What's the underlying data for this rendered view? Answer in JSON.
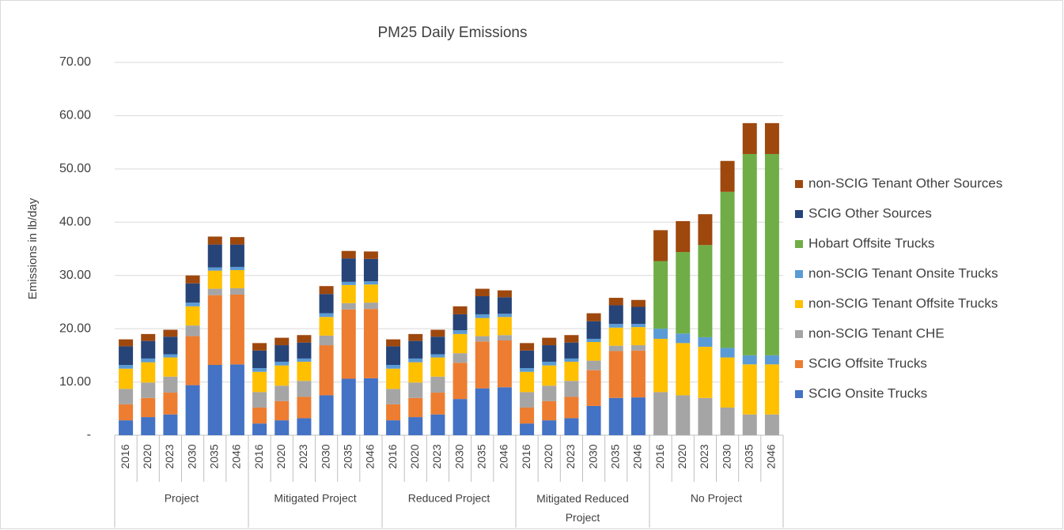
{
  "chart_data": {
    "type": "stacked_bar",
    "title": "PM25 Daily Emissions",
    "y_label": "Emissions in lb/day",
    "category_groups": [
      "Project",
      "Mitigated Project",
      "Reduced Project",
      "Mitigated Reduced Project",
      "No Project"
    ],
    "categories": [
      "2016",
      "2020",
      "2023",
      "2030",
      "2035",
      "2046",
      "2016",
      "2020",
      "2023",
      "2030",
      "2035",
      "2046",
      "2016",
      "2020",
      "2023",
      "2030",
      "2035",
      "2046",
      "2016",
      "2020",
      "2023",
      "2030",
      "2035",
      "2046",
      "2016",
      "2020",
      "2023",
      "2030",
      "2035",
      "2046"
    ],
    "ylim": [
      0,
      70
    ],
    "yticks": [
      {
        "value": 0,
        "label": "-"
      },
      {
        "value": 10,
        "label": "10.00"
      },
      {
        "value": 20,
        "label": "20.00"
      },
      {
        "value": 30,
        "label": "30.00"
      },
      {
        "value": 40,
        "label": "40.00"
      },
      {
        "value": 50,
        "label": "50.00"
      },
      {
        "value": 60,
        "label": "60.00"
      },
      {
        "value": 70,
        "label": "70.00"
      }
    ],
    "grid": true,
    "legend": "right",
    "series": [
      {
        "name": "SCIG Onsite Trucks",
        "color": "#4472c4",
        "values": [
          2.8,
          3.4,
          3.9,
          9.4,
          13.2,
          13.3,
          2.2,
          2.8,
          3.2,
          7.5,
          10.6,
          10.7,
          2.8,
          3.4,
          3.9,
          6.8,
          8.8,
          9.0,
          2.2,
          2.8,
          3.2,
          5.5,
          7.0,
          7.1,
          0,
          0,
          0,
          0,
          0,
          0
        ]
      },
      {
        "name": "SCIG Offsite Trucks",
        "color": "#ed7d31",
        "values": [
          3.0,
          3.6,
          4.1,
          9.2,
          13.1,
          13.1,
          3.0,
          3.6,
          4.0,
          9.4,
          13.0,
          13.0,
          3.0,
          3.6,
          4.1,
          6.8,
          8.8,
          8.8,
          3.0,
          3.6,
          4.0,
          6.7,
          8.8,
          8.8,
          0,
          0,
          0,
          0,
          0,
          0
        ]
      },
      {
        "name": "non-SCIG Tenant CHE",
        "color": "#a5a5a5",
        "values": [
          2.9,
          2.9,
          3.0,
          2.0,
          1.2,
          1.2,
          2.9,
          2.9,
          3.0,
          1.8,
          1.2,
          1.2,
          2.9,
          2.9,
          3.0,
          1.8,
          1.0,
          1.0,
          2.9,
          2.9,
          3.0,
          1.8,
          1.0,
          1.0,
          8.1,
          7.5,
          7.0,
          5.2,
          3.9,
          3.9
        ]
      },
      {
        "name": "non-SCIG Tenant Offsite Trucks",
        "color": "#ffc000",
        "values": [
          3.8,
          3.8,
          3.6,
          3.6,
          3.4,
          3.4,
          3.8,
          3.8,
          3.6,
          3.5,
          3.4,
          3.4,
          3.8,
          3.8,
          3.6,
          3.6,
          3.4,
          3.4,
          3.8,
          3.8,
          3.6,
          3.5,
          3.4,
          3.4,
          10.0,
          9.8,
          9.6,
          9.4,
          9.4,
          9.4
        ]
      },
      {
        "name": "non-SCIG Tenant Onsite Trucks",
        "color": "#5b9bd5",
        "values": [
          0.7,
          0.7,
          0.6,
          0.7,
          0.6,
          0.6,
          0.7,
          0.7,
          0.6,
          0.7,
          0.6,
          0.6,
          0.7,
          0.7,
          0.6,
          0.7,
          0.7,
          0.6,
          0.7,
          0.7,
          0.6,
          0.6,
          0.7,
          0.6,
          1.9,
          1.8,
          1.8,
          1.8,
          1.7,
          1.7
        ]
      },
      {
        "name": "Hobart Offsite Trucks",
        "color": "#70ad47",
        "values": [
          0,
          0,
          0,
          0,
          0,
          0,
          0,
          0,
          0,
          0,
          0,
          0,
          0,
          0,
          0,
          0,
          0,
          0,
          0,
          0,
          0,
          0,
          0,
          0,
          12.7,
          15.3,
          17.3,
          29.3,
          37.8,
          37.8
        ]
      },
      {
        "name": "SCIG Other Sources",
        "color": "#264478",
        "values": [
          3.5,
          3.3,
          3.3,
          3.6,
          4.3,
          4.2,
          3.3,
          3.1,
          3.0,
          3.6,
          4.4,
          4.2,
          3.5,
          3.3,
          3.3,
          3.0,
          3.4,
          3.1,
          3.3,
          3.1,
          3.0,
          3.3,
          3.5,
          3.2,
          0,
          0,
          0,
          0,
          0,
          0
        ]
      },
      {
        "name": "non-SCIG Tenant Other Sources",
        "color": "#9e480e",
        "values": [
          1.3,
          1.3,
          1.3,
          1.5,
          1.5,
          1.4,
          1.4,
          1.4,
          1.4,
          1.5,
          1.4,
          1.4,
          1.3,
          1.3,
          1.3,
          1.5,
          1.4,
          1.3,
          1.4,
          1.4,
          1.4,
          1.5,
          1.4,
          1.3,
          5.8,
          5.8,
          5.8,
          5.8,
          5.8,
          5.8
        ]
      }
    ]
  }
}
